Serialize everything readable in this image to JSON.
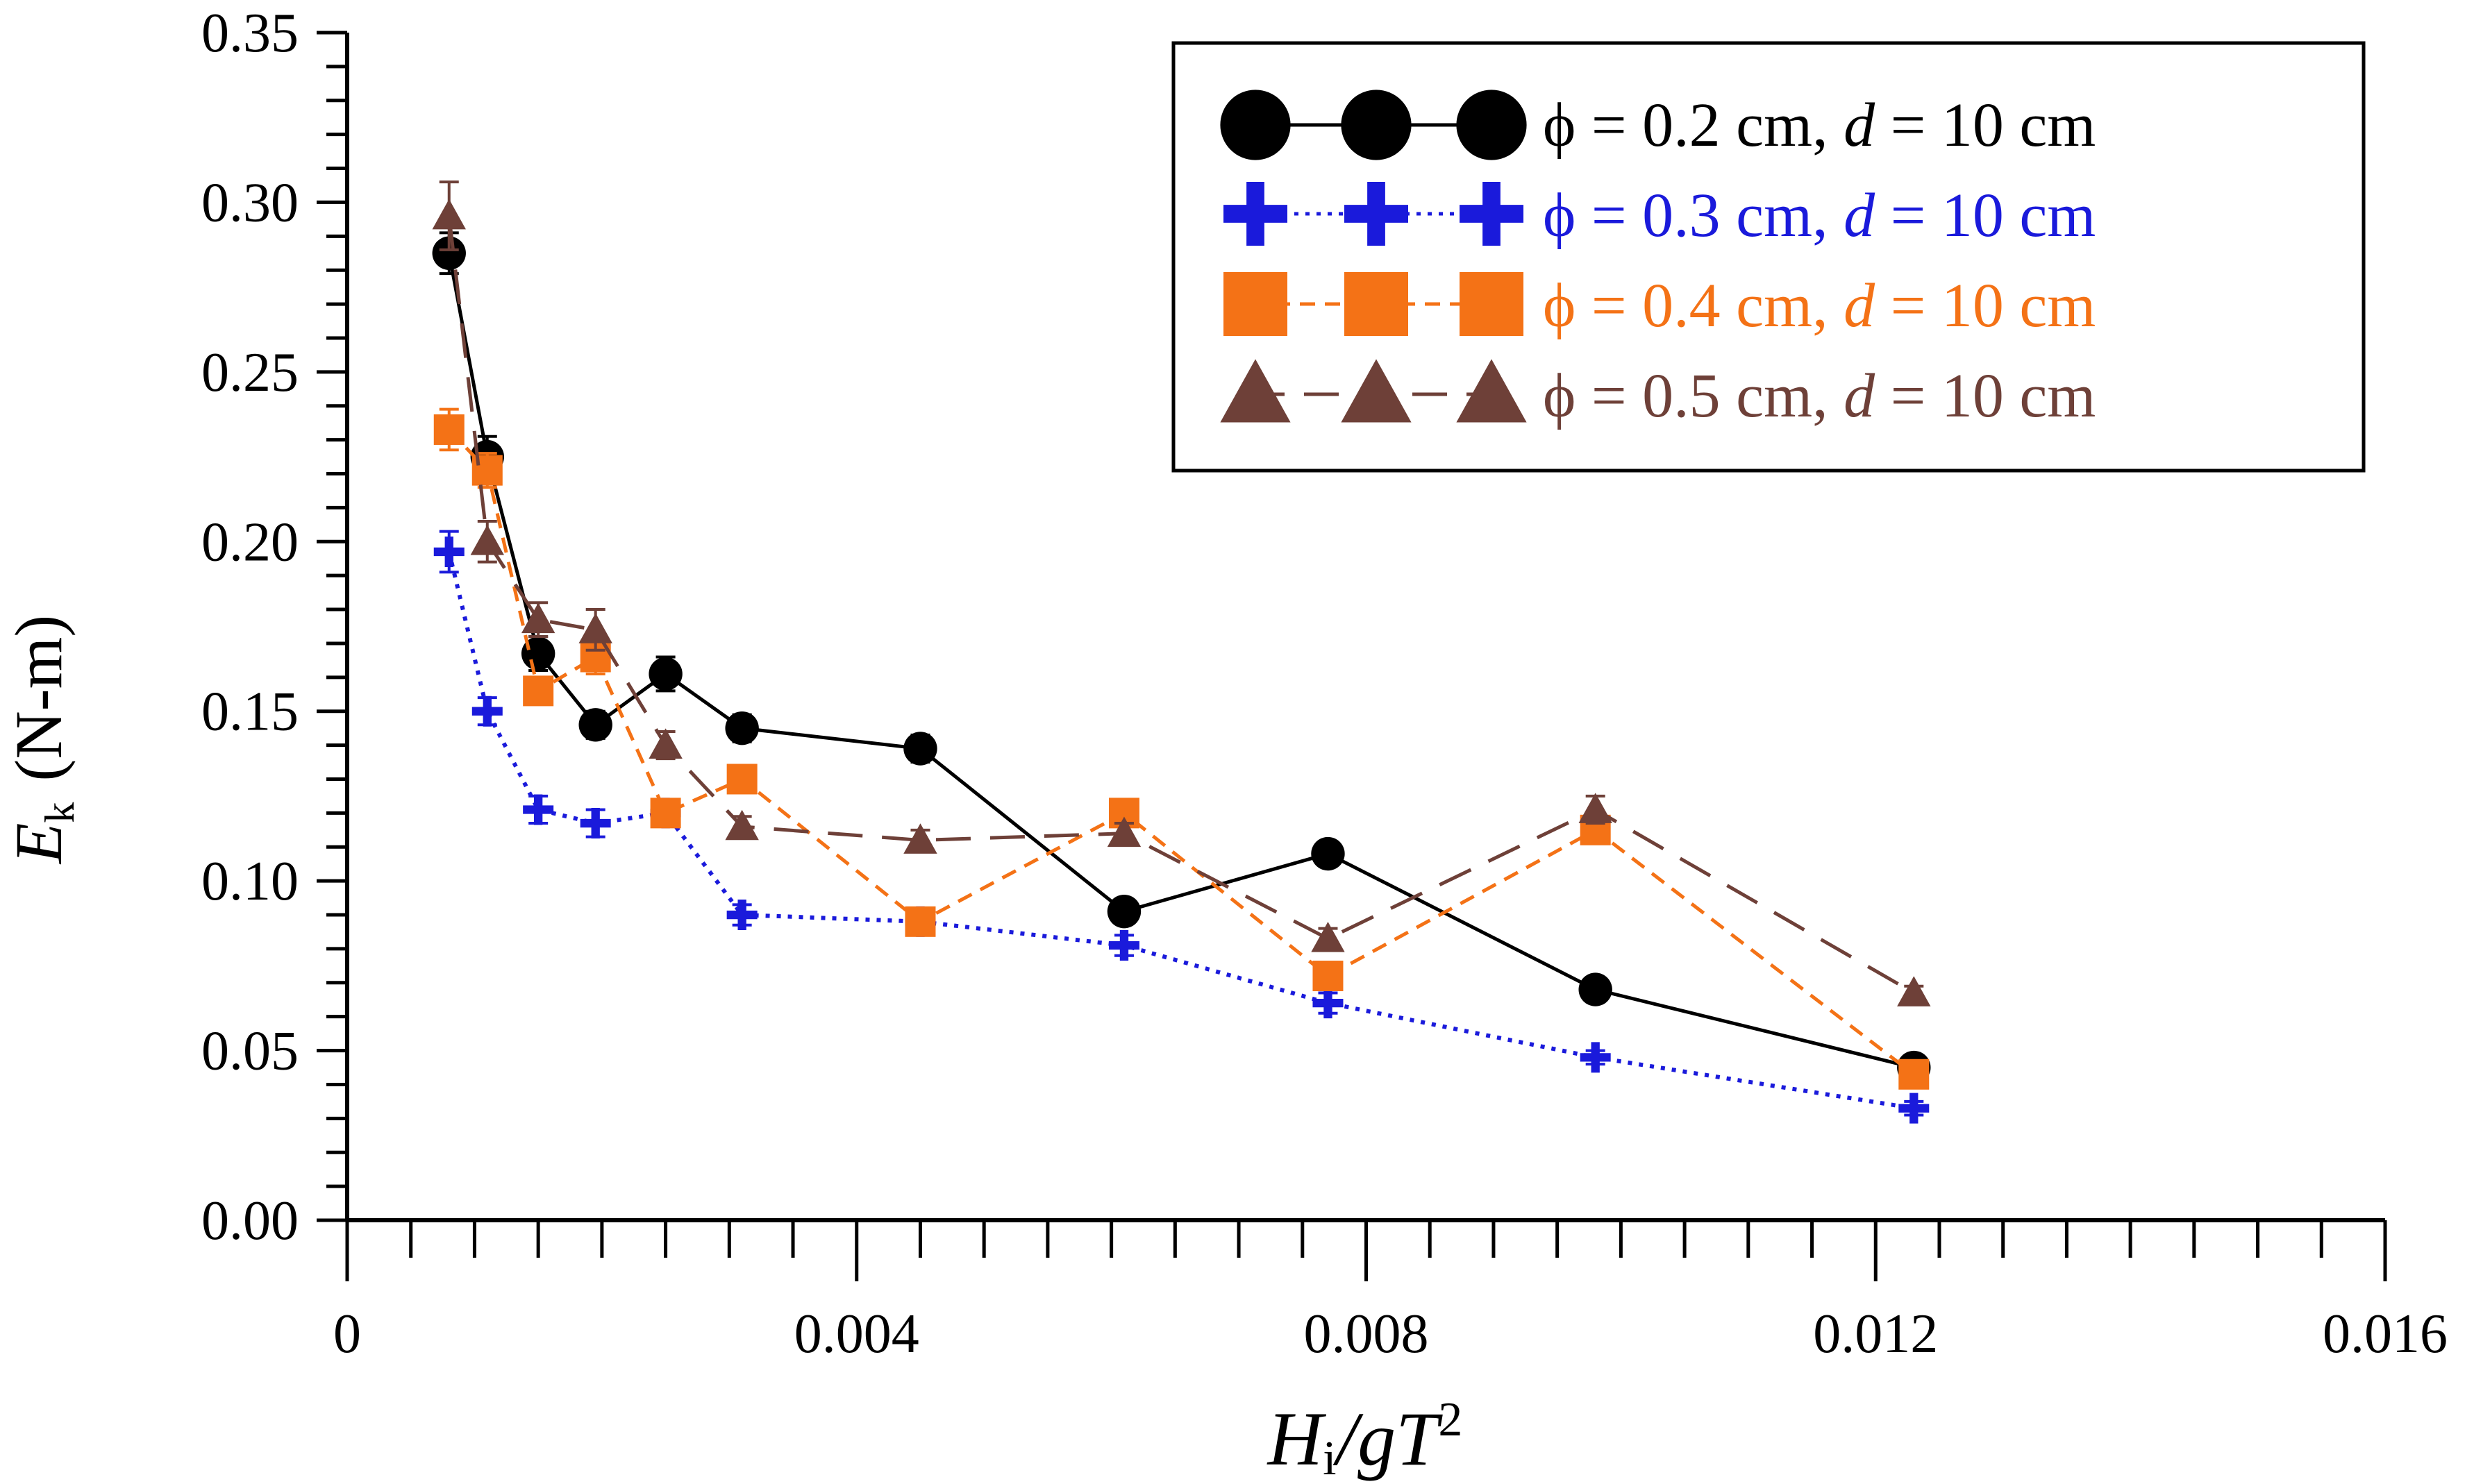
{
  "chart_data": {
    "type": "line",
    "title": "",
    "xlabel": {
      "main": "H",
      "sub": "i",
      "rest": "/gT",
      "sup": "2"
    },
    "ylabel": {
      "main": "E",
      "sub": "k",
      "rest": "(N-m)"
    },
    "xlim": [
      0,
      0.016
    ],
    "ylim": [
      0,
      0.35
    ],
    "x_major_ticks": [
      0,
      0.004,
      0.008,
      0.012,
      0.016
    ],
    "x_tick_labels": [
      "0",
      "0.004",
      "0.008",
      "0.012",
      "0.016"
    ],
    "y_major_ticks": [
      0,
      0.05,
      0.1,
      0.15,
      0.2,
      0.25,
      0.3,
      0.35
    ],
    "y_tick_labels": [
      "0.00",
      "0.05",
      "0.10",
      "0.15",
      "0.20",
      "0.25",
      "0.30",
      "0.35"
    ],
    "legend_position": "top-right",
    "x": [
      0.0008,
      0.0011,
      0.0015,
      0.00195,
      0.0025,
      0.0031,
      0.0045,
      0.0061,
      0.0077,
      0.0098,
      0.0123
    ],
    "series": [
      {
        "name": "phi-0.2",
        "legend": {
          "phi": "ϕ = 0.2 cm, ",
          "d": "d",
          "rest": " = 10 cm"
        },
        "color": "#000000",
        "marker": "circle",
        "dash": "none",
        "values": [
          0.285,
          0.225,
          0.167,
          0.146,
          0.161,
          0.145,
          0.139,
          0.091,
          0.108,
          0.068,
          0.045
        ],
        "errors": [
          0.006,
          0.006,
          0.005,
          0.004,
          0.005,
          0.004,
          0.004,
          0.003,
          0.003,
          0.003,
          0.002
        ]
      },
      {
        "name": "phi-0.3",
        "legend": {
          "phi": "ϕ = 0.3 cm, ",
          "d": "d",
          "rest": " = 10 cm"
        },
        "color": "#1a1adb",
        "marker": "plus",
        "dash": "dotted",
        "values": [
          0.197,
          0.15,
          0.121,
          0.117,
          0.12,
          0.09,
          0.088,
          0.081,
          0.064,
          0.048,
          0.033
        ],
        "errors": [
          0.006,
          0.004,
          0.004,
          0.004,
          0.004,
          0.003,
          0.003,
          0.003,
          0.003,
          0.002,
          0.002
        ]
      },
      {
        "name": "phi-0.4",
        "legend": {
          "phi": "ϕ = 0.4 cm, ",
          "d": "d",
          "rest": " = 10 cm"
        },
        "color": "#f47216",
        "marker": "square",
        "dash": "dashed",
        "values": [
          0.233,
          0.221,
          0.156,
          0.166,
          0.12,
          0.13,
          0.088,
          0.12,
          0.072,
          0.115,
          0.043
        ],
        "errors": [
          0.006,
          0.005,
          0.004,
          0.005,
          0.004,
          0.004,
          0.003,
          0.003,
          0.003,
          0.003,
          0.002
        ]
      },
      {
        "name": "phi-0.5",
        "legend": {
          "phi": "ϕ = 0.5 cm, ",
          "d": "d",
          "rest": " = 10 cm"
        },
        "color": "#6e4038",
        "marker": "triangle",
        "dash": "longdash",
        "values": [
          0.296,
          0.2,
          0.177,
          0.174,
          0.14,
          0.116,
          0.112,
          0.114,
          0.083,
          0.121,
          0.067
        ],
        "errors": [
          0.01,
          0.006,
          0.005,
          0.006,
          0.004,
          0.003,
          0.003,
          0.003,
          0.003,
          0.004,
          0.002
        ]
      }
    ]
  }
}
